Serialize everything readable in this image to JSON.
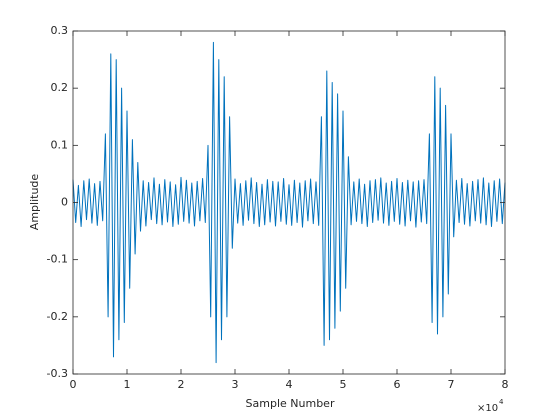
{
  "chart_data": {
    "type": "line",
    "xlabel": "Sample Number",
    "ylabel": "Amplitude",
    "x_exponent_base": "×10",
    "x_exponent_power": "4",
    "color": "#0072bd",
    "x": [
      0,
      500,
      1000,
      1500,
      2000,
      2500,
      3000,
      3500,
      4000,
      4500,
      5000,
      5500,
      6000,
      6500,
      7000,
      7500,
      8000,
      8500,
      9000,
      9500,
      10000,
      10500,
      11000,
      11500,
      12000,
      12500,
      13000,
      13500,
      14000,
      14500,
      15000,
      15500,
      16000,
      16500,
      17000,
      17500,
      18000,
      18500,
      19000,
      19500,
      20000,
      20500,
      21000,
      21500,
      22000,
      22500,
      23000,
      23500,
      24000,
      24500,
      25000,
      25500,
      26000,
      26500,
      27000,
      27500,
      28000,
      28500,
      29000,
      29500,
      30000,
      30500,
      31000,
      31500,
      32000,
      32500,
      33000,
      33500,
      34000,
      34500,
      35000,
      35500,
      36000,
      36500,
      37000,
      37500,
      38000,
      38500,
      39000,
      39500,
      40000,
      40500,
      41000,
      41500,
      42000,
      42500,
      43000,
      43500,
      44000,
      44500,
      45000,
      45500,
      46000,
      46500,
      47000,
      47500,
      48000,
      48500,
      49000,
      49500,
      50000,
      50500,
      51000,
      51500,
      52000,
      52500,
      53000,
      53500,
      54000,
      54500,
      55000,
      55500,
      56000,
      56500,
      57000,
      57500,
      58000,
      58500,
      59000,
      59500,
      60000,
      60500,
      61000,
      61500,
      62000,
      62500,
      63000,
      63500,
      64000,
      64500,
      65000,
      65500,
      66000,
      66500,
      67000,
      67500,
      68000,
      68500,
      69000,
      69500,
      70000,
      70500,
      71000,
      71500,
      72000,
      72500,
      73000,
      73500,
      74000,
      74500,
      75000,
      75500,
      76000,
      76500,
      77000,
      77500,
      78000,
      78500,
      79000,
      79500,
      80000
    ],
    "values": [
      0.04,
      -0.035,
      0.03,
      -0.042,
      0.038,
      -0.03,
      0.041,
      -0.036,
      0.033,
      -0.04,
      0.037,
      -0.032,
      0.12,
      -0.2,
      0.26,
      -0.27,
      0.25,
      -0.24,
      0.2,
      -0.21,
      0.16,
      -0.15,
      0.11,
      -0.09,
      0.07,
      -0.05,
      0.038,
      -0.041,
      0.035,
      -0.03,
      0.043,
      -0.037,
      0.032,
      -0.039,
      0.04,
      -0.034,
      0.036,
      -0.042,
      0.031,
      -0.038,
      0.044,
      -0.033,
      0.039,
      -0.036,
      0.034,
      -0.041,
      0.037,
      -0.032,
      0.042,
      -0.035,
      0.1,
      -0.2,
      0.28,
      -0.28,
      0.25,
      -0.24,
      0.22,
      -0.2,
      0.15,
      -0.08,
      0.041,
      -0.036,
      0.033,
      -0.04,
      0.038,
      -0.031,
      0.043,
      -0.037,
      0.035,
      -0.042,
      0.032,
      -0.039,
      0.04,
      -0.034,
      0.037,
      -0.041,
      0.036,
      -0.033,
      0.042,
      -0.038,
      0.031,
      -0.04,
      0.039,
      -0.035,
      0.034,
      -0.043,
      0.038,
      -0.032,
      0.041,
      -0.037,
      0.036,
      -0.04,
      0.15,
      -0.25,
      0.23,
      -0.24,
      0.21,
      -0.22,
      0.19,
      -0.19,
      0.16,
      -0.15,
      0.08,
      -0.039,
      0.036,
      -0.033,
      0.041,
      -0.037,
      0.032,
      -0.042,
      0.038,
      -0.035,
      0.04,
      -0.031,
      0.043,
      -0.036,
      0.034,
      -0.04,
      0.037,
      -0.033,
      0.042,
      -0.038,
      0.035,
      -0.041,
      0.039,
      -0.032,
      0.036,
      -0.043,
      0.038,
      -0.034,
      0.04,
      -0.037,
      0.12,
      -0.21,
      0.22,
      -0.23,
      0.2,
      -0.2,
      0.17,
      -0.16,
      0.12,
      -0.06,
      0.039,
      -0.035,
      0.042,
      -0.038,
      0.033,
      -0.041,
      0.037,
      -0.032,
      0.04,
      -0.036,
      0.043,
      -0.039,
      0.034,
      -0.042,
      0.038,
      -0.033,
      0.041,
      -0.037,
      0.035
    ],
    "xlim": [
      0,
      80000
    ],
    "xticks": [
      0,
      {
        "value": 10000,
        "label": "1"
      },
      {
        "value": 20000,
        "label": "2"
      },
      {
        "value": 30000,
        "label": "3"
      },
      {
        "value": 40000,
        "label": "4"
      },
      {
        "value": 50000,
        "label": "5"
      },
      {
        "value": 60000,
        "label": "6"
      },
      {
        "value": 70000,
        "label": "7"
      },
      {
        "value": 80000,
        "label": "8"
      }
    ],
    "ylim": [
      -0.3,
      0.3
    ],
    "yticks": [
      -0.3,
      -0.2,
      -0.1,
      0,
      0.1,
      0.2,
      0.3
    ]
  }
}
